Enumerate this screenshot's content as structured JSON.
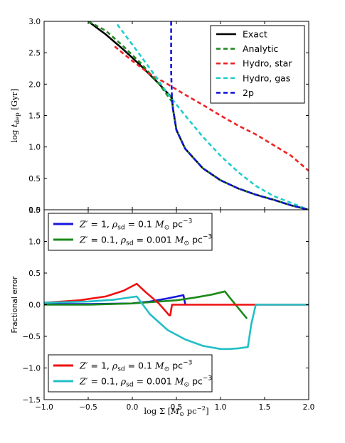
{
  "chart_data": [
    {
      "type": "line",
      "panel": "top",
      "ylabel": "log t_dep [Gyr]",
      "ylabel_parts": {
        "pre": "log ",
        "var": "t",
        "sub": "dep",
        "post": " [Gyr]"
      },
      "xlim": [
        -1.0,
        2.0
      ],
      "ylim": [
        0.0,
        3.0
      ],
      "yticks": [
        "0.0",
        "0.5",
        "1.0",
        "1.5",
        "2.0",
        "2.5",
        "3.0"
      ],
      "legend_position": "top-right",
      "series": [
        {
          "name": "Exact",
          "color": "#000000",
          "dash": "solid",
          "x": [
            -0.5,
            -0.3,
            -0.1,
            0.1,
            0.3,
            0.45,
            0.46,
            0.5,
            0.6,
            0.8,
            1.0,
            1.2,
            1.4,
            1.6,
            1.8,
            2.0
          ],
          "y": [
            3.0,
            2.79,
            2.55,
            2.29,
            2.01,
            1.78,
            1.62,
            1.27,
            0.97,
            0.66,
            0.47,
            0.34,
            0.24,
            0.16,
            0.07,
            0.0
          ]
        },
        {
          "name": "Analytic",
          "color": "#228b22",
          "dash": "dashed",
          "x": [
            -0.5,
            -0.3,
            -0.1,
            0.1,
            0.3,
            0.45,
            0.46,
            0.5,
            0.6,
            0.8,
            1.0,
            1.2,
            1.4,
            1.6,
            1.8,
            2.0
          ],
          "y": [
            3.0,
            2.85,
            2.6,
            2.33,
            2.01,
            1.72,
            1.62,
            1.27,
            0.97,
            0.66,
            0.47,
            0.34,
            0.24,
            0.16,
            0.07,
            0.0
          ]
        },
        {
          "name": "Hydro, star",
          "color": "#ee2222",
          "dash": "dashed",
          "x": [
            -0.2,
            0.0,
            0.2,
            0.4,
            0.6,
            0.8,
            1.0,
            1.2,
            1.4,
            1.6,
            1.8,
            2.0
          ],
          "y": [
            2.6,
            2.37,
            2.16,
            2.0,
            1.83,
            1.67,
            1.5,
            1.34,
            1.2,
            1.03,
            0.86,
            0.62
          ]
        },
        {
          "name": "Hydro, gas",
          "color": "#22cccc",
          "dash": "dashed",
          "x": [
            -0.17,
            0.0,
            0.2,
            0.4,
            0.6,
            0.8,
            1.0,
            1.2,
            1.4,
            1.6,
            1.8,
            2.0
          ],
          "y": [
            2.95,
            2.63,
            2.25,
            1.85,
            1.5,
            1.16,
            0.86,
            0.6,
            0.38,
            0.22,
            0.11,
            0.0
          ]
        },
        {
          "name": "2p",
          "color": "#1515dd",
          "dash": "dashed",
          "x": [
            0.44,
            0.44,
            0.45,
            0.46,
            0.5,
            0.6,
            0.8,
            1.0,
            1.2,
            1.4,
            1.6,
            1.8,
            2.0
          ],
          "y": [
            3.0,
            2.2,
            1.75,
            1.62,
            1.27,
            0.97,
            0.66,
            0.47,
            0.34,
            0.24,
            0.16,
            0.07,
            0.0
          ]
        }
      ]
    },
    {
      "type": "line",
      "panel": "bottom",
      "ylabel": "Fractional error",
      "xlabel": "log Σ [M⊙ pc⁻²]",
      "xlabel_parts": {
        "pre": "log ",
        "sym": "Σ",
        "open": " [",
        "var": "M",
        "sub": "⊙",
        "unit": " pc",
        "sup": "−2",
        "close": "]"
      },
      "xlim": [
        -1.0,
        2.0
      ],
      "ylim": [
        -1.5,
        1.5
      ],
      "xticks": [
        "−1.0",
        "−0.5",
        "0.0",
        "0.5",
        "1.0",
        "1.5",
        "2.0"
      ],
      "yticks": [
        "−1.5",
        "−1.0",
        "−0.5",
        "0.0",
        "0.5",
        "1.0",
        "1.5"
      ],
      "legend_groups": [
        {
          "position": "top-left",
          "entries": [
            {
              "color": "#1515dd",
              "parts": {
                "z": "Z′",
                "eq": " = 1,  ",
                "rho": "ρ",
                "rsub": "sd",
                "eq2": " = 0.1 ",
                "m": "M",
                "msub": "⊙",
                "unit": " pc",
                "sup": "−3"
              }
            },
            {
              "color": "#1a8a1a",
              "parts": {
                "z": "Z′",
                "eq": " = 0.1,  ",
                "rho": "ρ",
                "rsub": "sd",
                "eq2": " = 0.001 ",
                "m": "M",
                "msub": "⊙",
                "unit": " pc",
                "sup": "−3"
              }
            }
          ]
        },
        {
          "position": "bottom-left",
          "entries": [
            {
              "color": "#ee1111",
              "parts": {
                "z": "Z′",
                "eq": " = 1,  ",
                "rho": "ρ",
                "rsub": "sd",
                "eq2": " = 0.1 ",
                "m": "M",
                "msub": "⊙",
                "unit": " pc",
                "sup": "−3"
              }
            },
            {
              "color": "#22bfc6",
              "parts": {
                "z": "Z′",
                "eq": " = 0.1,  ",
                "rho": "ρ",
                "rsub": "sd",
                "eq2": " = 0.001 ",
                "m": "M",
                "msub": "⊙",
                "unit": " pc",
                "sup": "−3"
              }
            }
          ]
        }
      ],
      "series": [
        {
          "color": "#1515dd",
          "x": [
            -1.0,
            -0.5,
            0.0,
            0.2,
            0.4,
            0.58,
            0.6
          ],
          "y": [
            0.01,
            0.01,
            0.02,
            0.05,
            0.1,
            0.15,
            0.01
          ]
        },
        {
          "color": "#1a8a1a",
          "x": [
            -1.0,
            -0.5,
            0.0,
            0.5,
            0.7,
            0.9,
            1.05,
            1.1,
            1.2,
            1.3
          ],
          "y": [
            0.0,
            0.0,
            0.02,
            0.07,
            0.11,
            0.16,
            0.21,
            0.12,
            -0.05,
            -0.22
          ]
        },
        {
          "color": "#ee1111",
          "x": [
            -1.0,
            -0.6,
            -0.3,
            -0.1,
            0.05,
            0.15,
            0.3,
            0.42,
            0.43,
            0.45,
            2.0
          ],
          "y": [
            0.03,
            0.07,
            0.13,
            0.22,
            0.33,
            0.2,
            0.02,
            -0.17,
            -0.17,
            0.0,
            0.0
          ]
        },
        {
          "color": "#22bfc6",
          "x": [
            -1.0,
            -0.5,
            -0.2,
            0.05,
            0.2,
            0.4,
            0.6,
            0.8,
            1.0,
            1.1,
            1.2,
            1.31,
            1.35,
            1.4,
            2.0
          ],
          "y": [
            0.03,
            0.05,
            0.08,
            0.13,
            -0.15,
            -0.4,
            -0.55,
            -0.65,
            -0.7,
            -0.7,
            -0.69,
            -0.67,
            -0.3,
            0.0,
            0.0
          ]
        }
      ]
    }
  ]
}
